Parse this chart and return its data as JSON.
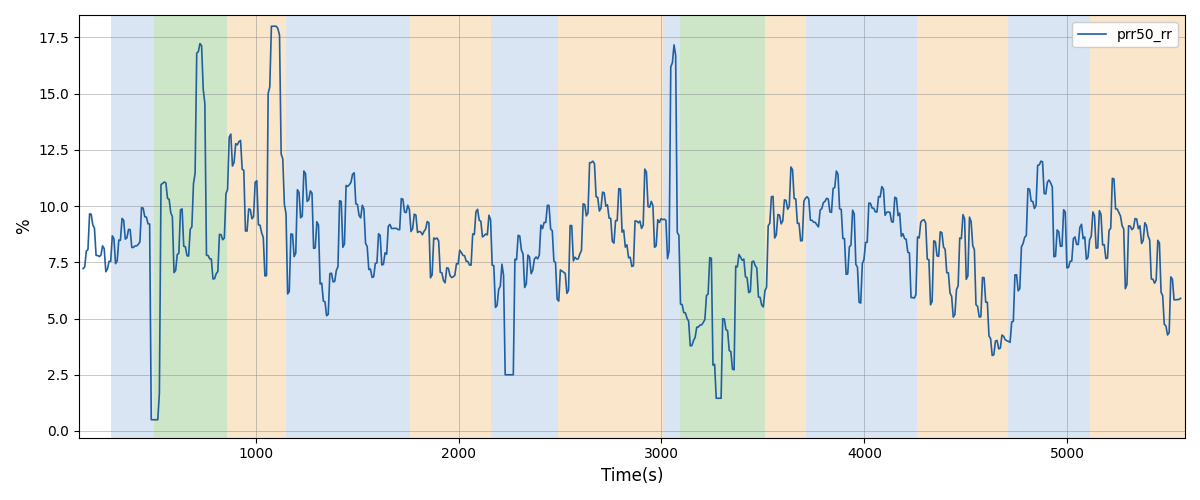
{
  "xlabel": "Time(s)",
  "ylabel": "%",
  "ylim": [
    -0.3,
    18.5
  ],
  "yticks": [
    0.0,
    2.5,
    5.0,
    7.5,
    10.0,
    12.5,
    15.0,
    17.5
  ],
  "xlim": [
    130,
    5580
  ],
  "legend_label": "prr50_rr",
  "line_color": "#2060a0",
  "line_width": 1.2,
  "bg_regions": [
    {
      "xmin": 290,
      "xmax": 500,
      "color": "#aec6e8",
      "alpha": 0.45
    },
    {
      "xmin": 500,
      "xmax": 860,
      "color": "#90c987",
      "alpha": 0.45
    },
    {
      "xmin": 860,
      "xmax": 1150,
      "color": "#f5c98a",
      "alpha": 0.45
    },
    {
      "xmin": 1150,
      "xmax": 1760,
      "color": "#aec6e8",
      "alpha": 0.45
    },
    {
      "xmin": 1760,
      "xmax": 2160,
      "color": "#f5c98a",
      "alpha": 0.45
    },
    {
      "xmin": 2160,
      "xmax": 2490,
      "color": "#aec6e8",
      "alpha": 0.45
    },
    {
      "xmin": 2490,
      "xmax": 3010,
      "color": "#f5c98a",
      "alpha": 0.45
    },
    {
      "xmin": 3010,
      "xmax": 3090,
      "color": "#aec6e8",
      "alpha": 0.45
    },
    {
      "xmin": 3090,
      "xmax": 3510,
      "color": "#90c987",
      "alpha": 0.45
    },
    {
      "xmin": 3510,
      "xmax": 3710,
      "color": "#f5c98a",
      "alpha": 0.45
    },
    {
      "xmin": 3710,
      "xmax": 4260,
      "color": "#aec6e8",
      "alpha": 0.45
    },
    {
      "xmin": 4260,
      "xmax": 4710,
      "color": "#f5c98a",
      "alpha": 0.45
    },
    {
      "xmin": 4710,
      "xmax": 5110,
      "color": "#aec6e8",
      "alpha": 0.45
    },
    {
      "xmin": 5110,
      "xmax": 5580,
      "color": "#f5c98a",
      "alpha": 0.45
    }
  ]
}
